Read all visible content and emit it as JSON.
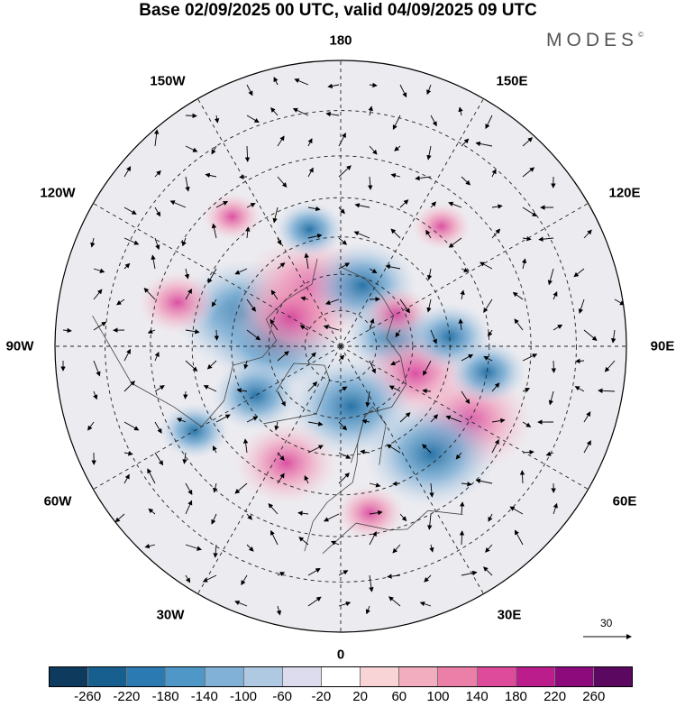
{
  "title": "Base 02/09/2025 00 UTC, valid 04/09/2025 09 UTC",
  "brand": "MODES",
  "brand_mark": "©",
  "map": {
    "projection": "north-polar-stereographic",
    "longitude_labels": [
      "180",
      "150E",
      "120E",
      "90E",
      "60E",
      "30E",
      "0",
      "30W",
      "60W",
      "90W",
      "120W",
      "150W"
    ],
    "anomalies": [
      {
        "lon": -108,
        "lat": 62,
        "value": -200
      },
      {
        "lon": -95,
        "lat": 72,
        "value": -190
      },
      {
        "lon": -150,
        "lat": 72,
        "value": 200
      },
      {
        "lon": -120,
        "lat": 74,
        "value": 160
      },
      {
        "lon": -165,
        "lat": 57,
        "value": -60
      },
      {
        "lon": -105,
        "lat": 45,
        "value": 80
      },
      {
        "lon": 160,
        "lat": 72,
        "value": -140
      },
      {
        "lon": 100,
        "lat": 75,
        "value": -120
      },
      {
        "lon": 120,
        "lat": 72,
        "value": 60
      },
      {
        "lon": 70,
        "lat": 68,
        "value": 150
      },
      {
        "lon": 10,
        "lat": 73,
        "value": -180
      },
      {
        "lon": -25,
        "lat": 55,
        "value": 130
      },
      {
        "lon": -60,
        "lat": 63,
        "value": -100
      },
      {
        "lon": 60,
        "lat": 50,
        "value": 180
      },
      {
        "lon": 40,
        "lat": 52,
        "value": -190
      },
      {
        "lon": 80,
        "lat": 50,
        "value": -80
      },
      {
        "lon": -60,
        "lat": 45,
        "value": -60
      },
      {
        "lon": 140,
        "lat": 48,
        "value": 40
      },
      {
        "lon": -140,
        "lat": 45,
        "value": 40
      },
      {
        "lon": 10,
        "lat": 45,
        "value": 60
      },
      {
        "lon": 95,
        "lat": 60,
        "value": -90
      }
    ]
  },
  "scale_arrow_label": "30",
  "colorbar": {
    "colors": [
      "#0e3a5e",
      "#175f8f",
      "#2b7ab1",
      "#4f97c6",
      "#81b1d6",
      "#b0c9e2",
      "#dcdcee",
      "#ffffff",
      "#f8d4d7",
      "#f2aebe",
      "#ec7fa8",
      "#dd4b9a",
      "#bb1d8d",
      "#8d0a7c",
      "#5b0860"
    ],
    "tick_labels": [
      "-260",
      "-220",
      "-180",
      "-140",
      "-100",
      "-60",
      "-20",
      "20",
      "60",
      "100",
      "140",
      "180",
      "220",
      "260"
    ]
  }
}
